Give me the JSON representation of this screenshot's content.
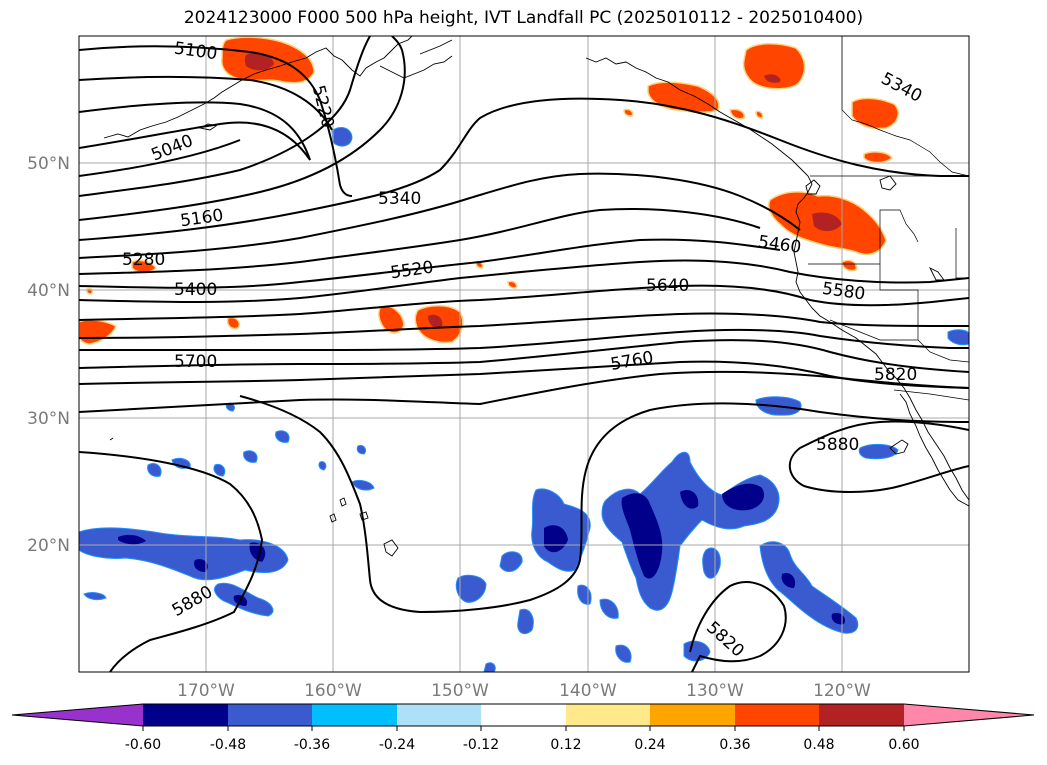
{
  "title": "2024123000 F000 500 hPa height, IVT Landfall PC (2025010112 - 2025010400)",
  "lon_labels": [
    "170°W",
    "160°W",
    "150°W",
    "140°W",
    "130°W",
    "120°W"
  ],
  "lat_labels": [
    "50°N",
    "40°N",
    "30°N",
    "20°N"
  ],
  "contour_labels": [
    "5100",
    "5040",
    "5220",
    "5160",
    "5340",
    "5280",
    "5400",
    "5520",
    "5640",
    "5460",
    "5580",
    "5700",
    "5760",
    "5820",
    "5880",
    "5340",
    "5880",
    "5820"
  ],
  "colorbar": {
    "ticks": [
      "-0.60",
      "-0.48",
      "-0.36",
      "-0.24",
      "-0.12",
      "0.12",
      "0.24",
      "0.36",
      "0.48",
      "0.60"
    ],
    "colors": [
      "#9932cc",
      "#00008b",
      "#3a5bd0",
      "#00bfff",
      "#aee1f8",
      "#ffffff",
      "#ffe98a",
      "#ffa500",
      "#ff4500",
      "#b22222",
      "#ff88aa"
    ]
  },
  "chart_data": {
    "type": "contour_map",
    "title": "2024123000 F000 500 hPa height, IVT Landfall PC (2025010112 - 2025010400)",
    "lon_range": [
      -180,
      -110
    ],
    "lat_range": [
      10,
      60
    ],
    "height_contours_gpm": [
      5040,
      5100,
      5160,
      5220,
      5280,
      5340,
      5400,
      5460,
      5520,
      5580,
      5640,
      5700,
      5760,
      5820,
      5880
    ],
    "fill_levels": [
      -0.6,
      -0.48,
      -0.36,
      -0.24,
      -0.12,
      0.12,
      0.24,
      0.36,
      0.48,
      0.6
    ]
  }
}
